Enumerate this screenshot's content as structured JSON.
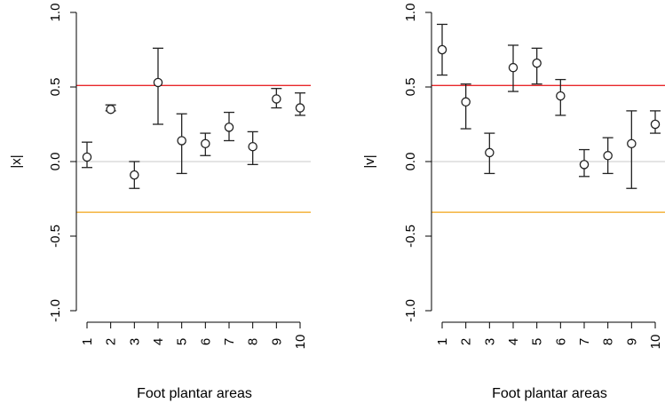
{
  "chart_data": [
    {
      "type": "scatter",
      "ylabel": "|x|",
      "xlabel": "Foot plantar areas",
      "xticks": [
        "1",
        "2",
        "3",
        "4",
        "5",
        "6",
        "7",
        "8",
        "9",
        "10"
      ],
      "yticks": [
        "-1.0",
        "-0.5",
        "0.0",
        "0.5",
        "1.0"
      ],
      "ylim": [
        -1.0,
        1.0
      ],
      "points": [
        {
          "x": 1,
          "y": 0.03,
          "lo": -0.04,
          "hi": 0.13
        },
        {
          "x": 2,
          "y": 0.35,
          "lo": 0.34,
          "hi": 0.38
        },
        {
          "x": 3,
          "y": -0.09,
          "lo": -0.18,
          "hi": 0.0
        },
        {
          "x": 4,
          "y": 0.53,
          "lo": 0.25,
          "hi": 0.76
        },
        {
          "x": 5,
          "y": 0.14,
          "lo": -0.08,
          "hi": 0.32
        },
        {
          "x": 6,
          "y": 0.12,
          "lo": 0.04,
          "hi": 0.19
        },
        {
          "x": 7,
          "y": 0.23,
          "lo": 0.14,
          "hi": 0.33
        },
        {
          "x": 8,
          "y": 0.1,
          "lo": -0.02,
          "hi": 0.2
        },
        {
          "x": 9,
          "y": 0.42,
          "lo": 0.36,
          "hi": 0.49
        },
        {
          "x": 10,
          "y": 0.36,
          "lo": 0.31,
          "hi": 0.46
        }
      ],
      "reference_lines": [
        {
          "y": 0.51,
          "color": "#e8272a"
        },
        {
          "y": -0.34,
          "color": "#f2a416"
        },
        {
          "y": 0.0,
          "color": "#c8c8c8"
        }
      ]
    },
    {
      "type": "scatter",
      "ylabel": "|v|",
      "xlabel": "Foot plantar areas",
      "xticks": [
        "1",
        "2",
        "3",
        "4",
        "5",
        "6",
        "7",
        "8",
        "9",
        "10"
      ],
      "yticks": [
        "-1.0",
        "-0.5",
        "0.0",
        "0.5",
        "1.0"
      ],
      "ylim": [
        -1.0,
        1.0
      ],
      "points": [
        {
          "x": 1,
          "y": 0.75,
          "lo": 0.58,
          "hi": 0.92
        },
        {
          "x": 2,
          "y": 0.4,
          "lo": 0.22,
          "hi": 0.52
        },
        {
          "x": 3,
          "y": 0.06,
          "lo": -0.08,
          "hi": 0.19
        },
        {
          "x": 4,
          "y": 0.63,
          "lo": 0.47,
          "hi": 0.78
        },
        {
          "x": 5,
          "y": 0.66,
          "lo": 0.52,
          "hi": 0.76
        },
        {
          "x": 6,
          "y": 0.44,
          "lo": 0.31,
          "hi": 0.55
        },
        {
          "x": 7,
          "y": -0.02,
          "lo": -0.1,
          "hi": 0.08
        },
        {
          "x": 8,
          "y": 0.04,
          "lo": -0.08,
          "hi": 0.16
        },
        {
          "x": 9,
          "y": 0.12,
          "lo": -0.18,
          "hi": 0.34
        },
        {
          "x": 10,
          "y": 0.25,
          "lo": 0.19,
          "hi": 0.34
        }
      ],
      "reference_lines": [
        {
          "y": 0.51,
          "color": "#e8272a"
        },
        {
          "y": -0.34,
          "color": "#f2a416"
        },
        {
          "y": 0.0,
          "color": "#c8c8c8"
        }
      ]
    }
  ]
}
